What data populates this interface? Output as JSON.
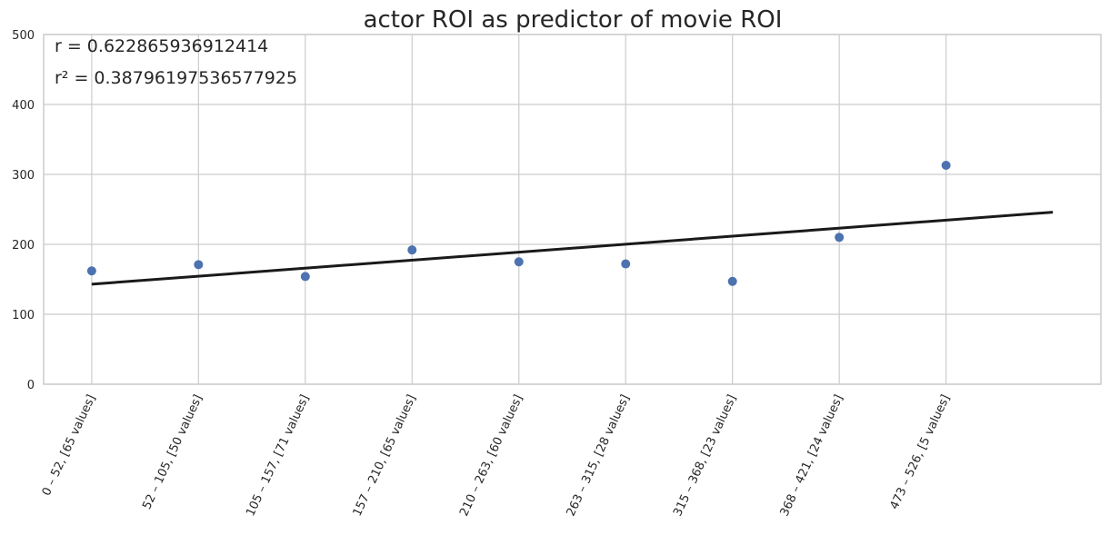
{
  "chart_data": {
    "type": "scatter",
    "title": "actor ROI as predictor of movie ROI",
    "xlabel": "",
    "ylabel": "",
    "categories": [
      "0 – 52, [65 values]",
      "52 – 105, [50 values]",
      "105 – 157, [71 values]",
      "157 – 210, [65 values]",
      "210 – 263, [60 values]",
      "263 – 315, [28 values]",
      "315 – 368, [23 values]",
      "368 – 421, [24 values]",
      "473 – 526, [5 values]"
    ],
    "x_index": [
      0,
      1,
      2,
      3,
      4,
      5,
      6,
      7,
      8
    ],
    "values": [
      162,
      171,
      154,
      192,
      175,
      172,
      147,
      210,
      313
    ],
    "trendline": {
      "x": [
        0,
        9
      ],
      "y": [
        143,
        246
      ]
    },
    "xlim": [
      -0.45,
      9.45
    ],
    "ylim": [
      0,
      500
    ],
    "yticks": [
      0,
      100,
      200,
      300,
      400,
      500
    ],
    "grid": true,
    "annotations": [
      "r = 0.622865936912414",
      "r² = 0.38796197536577925"
    ],
    "colors": {
      "points": "#4c72b0",
      "trendline": "#1a1a1a",
      "grid": "#cccccc"
    }
  }
}
